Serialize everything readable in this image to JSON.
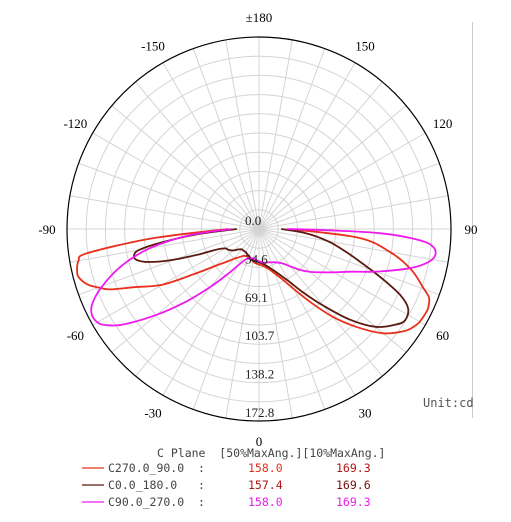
{
  "chart_data": {
    "type": "polar",
    "angular_labels": [
      {
        "angle": 180,
        "text": "±180"
      },
      {
        "angle": -150,
        "text": "-150"
      },
      {
        "angle": 150,
        "text": "150"
      },
      {
        "angle": -120,
        "text": "-120"
      },
      {
        "angle": 120,
        "text": "120"
      },
      {
        "angle": -90,
        "text": "-90"
      },
      {
        "angle": 90,
        "text": "90"
      },
      {
        "angle": -60,
        "text": "-60"
      },
      {
        "angle": 60,
        "text": "60"
      },
      {
        "angle": -30,
        "text": "-30"
      },
      {
        "angle": 30,
        "text": "30"
      },
      {
        "angle": 0,
        "text": "0"
      }
    ],
    "radial_labels": [
      "0.0",
      "34.6",
      "69.1",
      "103.7",
      "138.2",
      "172.8"
    ],
    "radial_max": 172.8,
    "unit_label": "Unit:cd",
    "grid": true,
    "series": [
      {
        "name": "C270.0_90.0",
        "color": "#e8301c",
        "points": [
          [
            -90,
            28
          ],
          [
            -85,
            96
          ],
          [
            -82,
            156
          ],
          [
            -80,
            165
          ],
          [
            -77,
            168
          ],
          [
            -75,
            168
          ],
          [
            -72,
            162
          ],
          [
            -70,
            154
          ],
          [
            -68,
            145
          ],
          [
            -65,
            124
          ],
          [
            -60,
            100
          ],
          [
            -55,
            70
          ],
          [
            -50,
            52
          ],
          [
            -45,
            42
          ],
          [
            -40,
            35
          ],
          [
            -35,
            31
          ],
          [
            -30,
            28
          ],
          [
            -25,
            27
          ],
          [
            -20,
            27
          ],
          [
            -15,
            28
          ],
          [
            -10,
            30
          ],
          [
            -5,
            31
          ],
          [
            0,
            32
          ],
          [
            5,
            33
          ],
          [
            10,
            35
          ],
          [
            15,
            38
          ],
          [
            20,
            43
          ],
          [
            25,
            50
          ],
          [
            30,
            62
          ],
          [
            35,
            80
          ],
          [
            40,
            103
          ],
          [
            45,
            125
          ],
          [
            50,
            146
          ],
          [
            55,
            160
          ],
          [
            58,
            165
          ],
          [
            60,
            167
          ],
          [
            63,
            168
          ],
          [
            65,
            168
          ],
          [
            68,
            165
          ],
          [
            70,
            158
          ],
          [
            75,
            142
          ],
          [
            80,
            120
          ],
          [
            85,
            90
          ],
          [
            90,
            28
          ]
        ]
      },
      {
        "name": "C0.0_180.0",
        "color": "#5a1a10",
        "points": [
          [
            -90,
            20
          ],
          [
            -85,
            57
          ],
          [
            -82,
            90
          ],
          [
            -80,
            110
          ],
          [
            -78,
            115
          ],
          [
            -76,
            114
          ],
          [
            -74,
            107
          ],
          [
            -72,
            95
          ],
          [
            -70,
            80
          ],
          [
            -67,
            58
          ],
          [
            -64,
            42
          ],
          [
            -60,
            35
          ],
          [
            -55,
            33
          ],
          [
            -50,
            30
          ],
          [
            -45,
            26
          ],
          [
            -40,
            24
          ],
          [
            -35,
            24
          ],
          [
            -30,
            24
          ],
          [
            -25,
            25
          ],
          [
            -20,
            26
          ],
          [
            -15,
            28
          ],
          [
            -10,
            29
          ],
          [
            -5,
            29
          ],
          [
            0,
            30
          ],
          [
            5,
            31
          ],
          [
            10,
            33
          ],
          [
            15,
            36
          ],
          [
            20,
            40
          ],
          [
            25,
            46
          ],
          [
            30,
            55
          ],
          [
            35,
            70
          ],
          [
            40,
            90
          ],
          [
            45,
            115
          ],
          [
            50,
            137
          ],
          [
            55,
            150
          ],
          [
            58,
            155
          ],
          [
            62,
            152
          ],
          [
            65,
            140
          ],
          [
            68,
            120
          ],
          [
            72,
            96
          ],
          [
            76,
            78
          ],
          [
            80,
            63
          ],
          [
            85,
            42
          ],
          [
            90,
            20
          ]
        ]
      },
      {
        "name": "C90.0_270.0",
        "color": "#ee1aee",
        "points": [
          [
            -90,
            25
          ],
          [
            -85,
            62
          ],
          [
            -80,
            100
          ],
          [
            -75,
            128
          ],
          [
            -70,
            150
          ],
          [
            -66,
            164
          ],
          [
            -63,
            169
          ],
          [
            -60,
            168
          ],
          [
            -58,
            163
          ],
          [
            -55,
            150
          ],
          [
            -50,
            120
          ],
          [
            -45,
            92
          ],
          [
            -40,
            68
          ],
          [
            -35,
            50
          ],
          [
            -30,
            38
          ],
          [
            -25,
            31
          ],
          [
            -20,
            28
          ],
          [
            -15,
            27
          ],
          [
            -10,
            27
          ],
          [
            -5,
            28
          ],
          [
            0,
            29
          ],
          [
            5,
            30
          ],
          [
            10,
            31
          ],
          [
            15,
            31
          ],
          [
            20,
            32
          ],
          [
            25,
            33
          ],
          [
            30,
            35
          ],
          [
            35,
            38
          ],
          [
            40,
            44
          ],
          [
            45,
            52
          ],
          [
            50,
            60
          ],
          [
            55,
            68
          ],
          [
            60,
            78
          ],
          [
            65,
            91
          ],
          [
            70,
            112
          ],
          [
            75,
            138
          ],
          [
            78,
            152
          ],
          [
            81,
            160
          ],
          [
            84,
            158
          ],
          [
            86,
            145
          ],
          [
            88,
            110
          ],
          [
            89,
            60
          ],
          [
            90,
            25
          ]
        ]
      }
    ]
  },
  "table": {
    "header": "C Plane  [50%MaxAng.][10%MaxAng.]",
    "rows": [
      {
        "label": "C270.0_90.0  :",
        "v50": "158.0",
        "v10": "169.3",
        "line_color": "#e8301c",
        "c50": "#e8301c",
        "c10": "#b21515"
      },
      {
        "label": "C0.0_180.0   :",
        "v50": "157.4",
        "v10": "169.6",
        "line_color": "#5a1a10",
        "c50": "#b21515",
        "c10": "#7a0f0f"
      },
      {
        "label": "C90.0_270.0  :",
        "v50": "158.0",
        "v10": "169.3",
        "line_color": "#ee1aee",
        "c50": "#ee1aee",
        "c10": "#ee1aee"
      }
    ]
  },
  "colors": {
    "grid": "#d4d4d4",
    "outer": "#000000",
    "unit": "#555555"
  }
}
